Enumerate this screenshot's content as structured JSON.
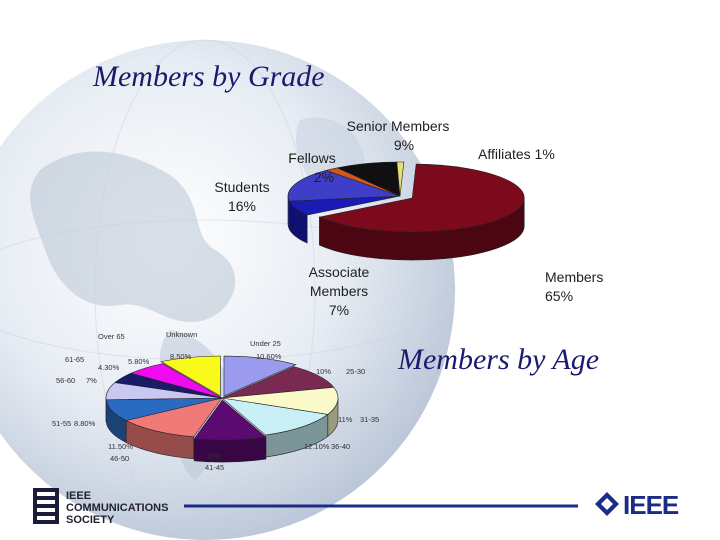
{
  "titles": {
    "grade": "Members by Grade",
    "age": "Members by Age"
  },
  "chart_data": [
    {
      "type": "pie",
      "title": "Members by Grade",
      "slices": [
        {
          "key": "members",
          "label": "Members 65%",
          "value": 65,
          "color": "#7a0a1c"
        },
        {
          "key": "associate",
          "label": "Associate Members 7%",
          "value": 7,
          "color": "#1a1ab4"
        },
        {
          "key": "students",
          "label": "Students 16%",
          "value": 16,
          "color": "#3e3ec8"
        },
        {
          "key": "fellows",
          "label": "Fellows 2%",
          "value": 2,
          "color": "#d0581c"
        },
        {
          "key": "senior",
          "label": "Senior Members 9%",
          "value": 9,
          "color": "#101010"
        },
        {
          "key": "affiliates",
          "label": "Affiliates 1%",
          "value": 1,
          "color": "#e8e070"
        }
      ],
      "labels": {
        "senior": [
          "Senior Members",
          "9%"
        ],
        "affiliates": [
          "Affiliates 1%"
        ],
        "fellows": [
          "Fellows",
          "2%"
        ],
        "students": [
          "Students",
          "16%"
        ],
        "associate": [
          "Associate",
          "Members",
          "7%"
        ],
        "members": [
          "Members",
          "65%"
        ]
      }
    },
    {
      "type": "pie",
      "title": "Members by Age",
      "slices": [
        {
          "key": "under25",
          "category": "Under 25",
          "pct": "10.60%",
          "value": 10.6,
          "color": "#9a9aee"
        },
        {
          "key": "a25_30",
          "category": "25-30",
          "pct": "10%",
          "value": 10,
          "color": "#7a2a52"
        },
        {
          "key": "a31_35",
          "category": "31-35",
          "pct": "11%",
          "value": 11,
          "color": "#fafac8"
        },
        {
          "key": "a36_40",
          "category": "36-40",
          "pct": "12.10%",
          "value": 12.1,
          "color": "#c8f0f6"
        },
        {
          "key": "a41_45",
          "category": "41-45",
          "pct": "10%",
          "value": 10,
          "color": "#5a0a70"
        },
        {
          "key": "a46_50",
          "category": "46-50",
          "pct": "11.50%",
          "value": 11.5,
          "color": "#f07a78"
        },
        {
          "key": "a51_55",
          "category": "51-55",
          "pct": "8.80%",
          "value": 8.8,
          "color": "#2a6ac0"
        },
        {
          "key": "a56_60",
          "category": "56-60",
          "pct": "7%",
          "value": 7,
          "color": "#c8c8f0"
        },
        {
          "key": "a61_65",
          "category": "61-65",
          "pct": "4.30%",
          "value": 4.3,
          "color": "#1a1a6a"
        },
        {
          "key": "over65",
          "category": "Over 65",
          "pct": "5.80%",
          "value": 5.8,
          "color": "#f00af0"
        },
        {
          "key": "unknown",
          "category": "Unknown",
          "pct": "8.50%",
          "value": 8.5,
          "color": "#fafa1a"
        }
      ]
    }
  ],
  "footer": {
    "org_lines": [
      "IEEE",
      "COMMUNICATIONS",
      "SOCIETY"
    ],
    "brand": "IEEE"
  }
}
